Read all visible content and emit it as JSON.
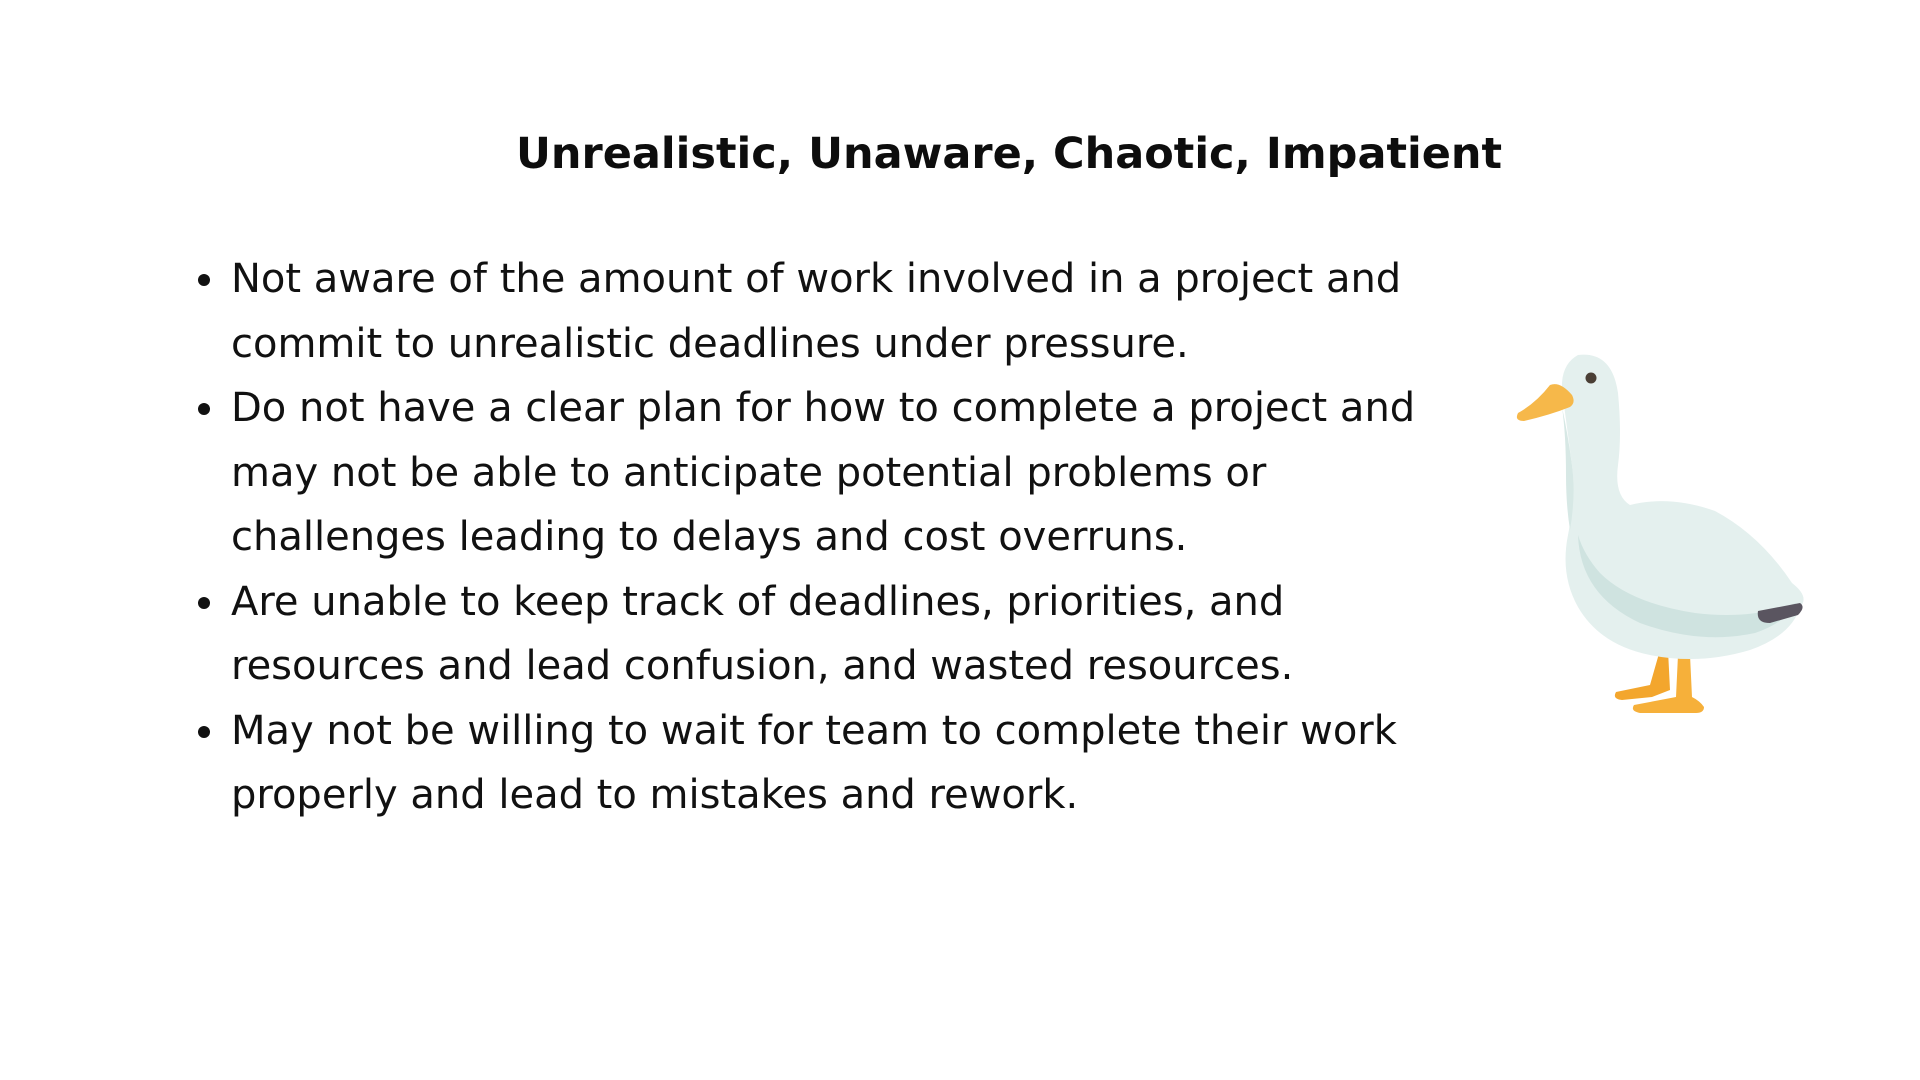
{
  "slide": {
    "title": "Unrealistic, Unaware, Chaotic, Impatient",
    "bullets": [
      {
        "text": "Not aware of the amount of work involved in a project and commit to unrealistic deadlines under pressure."
      },
      {
        "text": "Do not have a clear plan for how to complete a project and may not be able to anticipate potential problems or challenges leading to delays and cost overruns."
      },
      {
        "text": "Are unable to keep track of deadlines, priorities, and resources and lead confusion, and wasted resources."
      },
      {
        "text": "May not be willing to wait for team to complete their work properly and lead to mistakes and rework."
      }
    ],
    "illustration": {
      "icon": "goose-icon",
      "colors": {
        "body": "#e4f0ee",
        "body_shade": "#cfe3e0",
        "beak": "#f6b84a",
        "feet": "#f3a62d",
        "tail": "#5a5560",
        "eye": "#4a3f35"
      }
    }
  }
}
